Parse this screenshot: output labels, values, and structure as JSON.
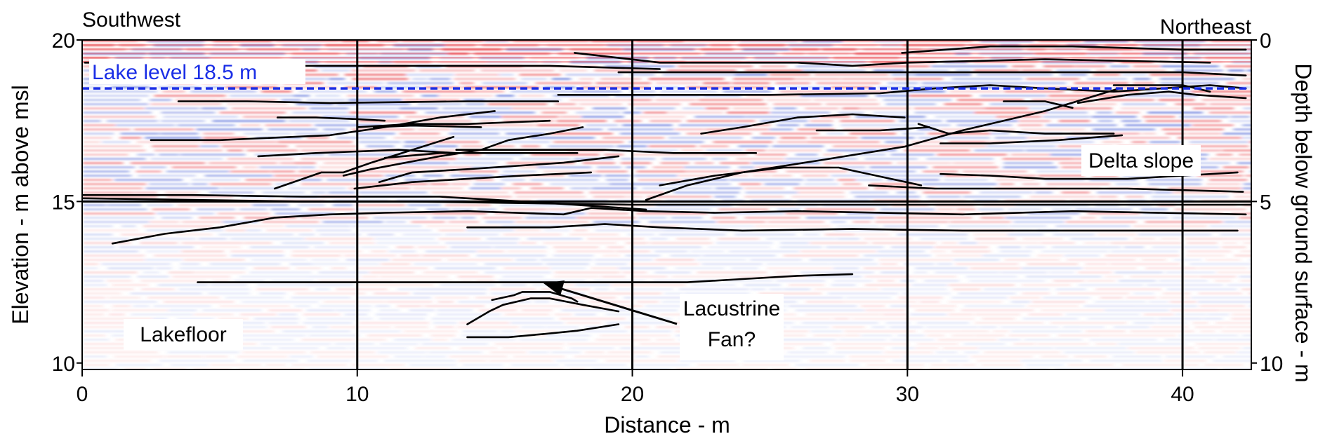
{
  "figure": {
    "corner_left": "Southwest",
    "corner_right": "Northeast",
    "xlabel": "Distance - m",
    "ylabel_left": "Elevation - m above msl",
    "ylabel_right": "Depth below ground surface - m",
    "x_ticks": [
      "0",
      "10",
      "20",
      "30",
      "40"
    ],
    "y_ticks_left": [
      "20",
      "15",
      "10"
    ],
    "y_ticks_right": [
      "0",
      "5",
      "10"
    ],
    "lake_level_label": "Lake level 18.5 m",
    "annotations": {
      "delta_slope": "Delta slope",
      "lacustrine_fan_line1": "Lacustrine",
      "lacustrine_fan_line2": "Fan?",
      "lakefloor": "Lakefloor"
    }
  },
  "chart_data": {
    "type": "line",
    "xlim": [
      0,
      42.5
    ],
    "ylim": [
      9.8,
      20
    ],
    "x_ticks": [
      0,
      10,
      20,
      30,
      40
    ],
    "y_ticks": [
      20,
      15,
      10
    ],
    "depth_ticks": [
      0,
      5,
      10
    ],
    "vertical_gridlines_x": [
      10,
      20,
      30,
      40
    ],
    "horizontal_gridline_y": 15,
    "lake_level_elevation": 18.5,
    "colors": {
      "lake_level": "#1a2ee6",
      "reflector_lines": "#000000",
      "radar_red": "#e8464e",
      "radar_blue": "#4c63d6",
      "background": "#ffffff",
      "frame": "#000000"
    },
    "reflectors": [
      [
        [
          0.1,
          19.3
        ],
        [
          3,
          19.3
        ],
        [
          5,
          19.2
        ],
        [
          9,
          19.2
        ],
        [
          14,
          19.2
        ],
        [
          17,
          19.2
        ],
        [
          21,
          19.1
        ]
      ],
      [
        [
          17.9,
          19.6
        ],
        [
          21,
          19.3
        ],
        [
          26,
          19.3
        ],
        [
          28,
          19.2
        ],
        [
          30,
          19.3
        ],
        [
          35,
          19.4
        ],
        [
          41,
          19.3
        ]
      ],
      [
        [
          29.8,
          19.6
        ],
        [
          33,
          19.8
        ],
        [
          36,
          19.8
        ],
        [
          40,
          19.7
        ],
        [
          42.3,
          19.7
        ]
      ],
      [
        [
          3.5,
          18.1
        ],
        [
          6,
          18.1
        ],
        [
          9,
          18.05
        ],
        [
          14,
          18.1
        ],
        [
          17.3,
          18.1
        ]
      ],
      [
        [
          17.3,
          18.3
        ],
        [
          20,
          18.3
        ],
        [
          25,
          18.3
        ],
        [
          29,
          18.35
        ],
        [
          31,
          18.5
        ],
        [
          33,
          18.6
        ],
        [
          35,
          18.5
        ],
        [
          37.5,
          18.4
        ],
        [
          41,
          18.6
        ],
        [
          42.3,
          18.5
        ]
      ],
      [
        [
          19.5,
          19.0
        ],
        [
          23,
          19.0
        ],
        [
          27,
          19.0
        ],
        [
          32,
          19.0
        ],
        [
          36,
          19.0
        ],
        [
          40,
          19.0
        ],
        [
          42.3,
          18.9
        ]
      ],
      [
        [
          7.1,
          17.6
        ],
        [
          8.5,
          17.6
        ],
        [
          10,
          17.55
        ],
        [
          11,
          17.5
        ]
      ],
      [
        [
          10,
          17.3
        ],
        [
          12,
          17.4
        ],
        [
          14,
          17.4
        ],
        [
          17,
          17.5
        ]
      ],
      [
        [
          10.6,
          17.3
        ],
        [
          12,
          17.35
        ],
        [
          14.5,
          17.3
        ]
      ],
      [
        [
          2.5,
          16.9
        ],
        [
          5,
          16.9
        ],
        [
          9,
          17.05
        ],
        [
          11,
          17.3
        ],
        [
          13,
          17.6
        ],
        [
          15,
          17.8
        ]
      ],
      [
        [
          6.4,
          16.4
        ],
        [
          8.5,
          16.5
        ],
        [
          11.5,
          16.6
        ],
        [
          13.6,
          16.5
        ]
      ],
      [
        [
          11,
          16.35
        ],
        [
          13,
          16.5
        ],
        [
          16,
          16.5
        ],
        [
          18,
          16.5
        ]
      ],
      [
        [
          7,
          15.4
        ],
        [
          8.7,
          15.9
        ],
        [
          9.5,
          15.9
        ],
        [
          10.5,
          16.2
        ],
        [
          12,
          16.6
        ],
        [
          13.5,
          17.0
        ]
      ],
      [
        [
          9.5,
          15.8
        ],
        [
          10.5,
          16.0
        ],
        [
          13,
          16.4
        ],
        [
          14.5,
          16.6
        ],
        [
          15.5,
          16.9
        ],
        [
          17,
          17.1
        ],
        [
          18.2,
          17.3
        ]
      ],
      [
        [
          10.8,
          15.6
        ],
        [
          12,
          15.9
        ],
        [
          14,
          16.0
        ],
        [
          17.5,
          16.2
        ],
        [
          19.5,
          16.4
        ]
      ],
      [
        [
          9.9,
          15.4
        ],
        [
          12,
          15.6
        ],
        [
          14,
          15.7
        ],
        [
          16,
          15.8
        ],
        [
          18.5,
          15.9
        ]
      ],
      [
        [
          13.6,
          16.6
        ],
        [
          16,
          16.6
        ],
        [
          19,
          16.6
        ],
        [
          21.5,
          16.5
        ],
        [
          24.5,
          16.5
        ]
      ],
      [
        [
          21,
          15.5
        ],
        [
          23,
          15.8
        ],
        [
          25.5,
          16.05
        ],
        [
          27.5,
          16.05
        ],
        [
          30.5,
          15.5
        ]
      ],
      [
        [
          22.5,
          17.1
        ],
        [
          24,
          17.3
        ],
        [
          26,
          17.6
        ],
        [
          28,
          17.7
        ],
        [
          29.9,
          17.6
        ]
      ],
      [
        [
          26.7,
          17.2
        ],
        [
          29,
          17.2
        ],
        [
          30.8,
          17.3
        ]
      ],
      [
        [
          20.5,
          15.05
        ],
        [
          22,
          15.5
        ],
        [
          24,
          15.9
        ],
        [
          27,
          16.3
        ],
        [
          29.9,
          16.7
        ],
        [
          32,
          17.2
        ],
        [
          35,
          17.8
        ],
        [
          37.7,
          18.5
        ]
      ],
      [
        [
          30.4,
          17.4
        ],
        [
          31.5,
          17.1
        ],
        [
          33,
          17.2
        ],
        [
          35,
          17.1
        ],
        [
          37.5,
          17.1
        ]
      ],
      [
        [
          31.2,
          16.8
        ],
        [
          33,
          16.8
        ],
        [
          35.5,
          16.9
        ],
        [
          37.8,
          17.05
        ]
      ],
      [
        [
          31.2,
          15.85
        ],
        [
          33,
          15.8
        ],
        [
          35,
          15.7
        ],
        [
          38,
          15.7
        ],
        [
          40,
          15.8
        ],
        [
          42,
          15.9
        ]
      ],
      [
        [
          33.5,
          18.1
        ],
        [
          35,
          18.1
        ],
        [
          36,
          17.9
        ]
      ],
      [
        [
          36.2,
          18.05
        ],
        [
          38,
          18.3
        ],
        [
          39.5,
          18.4
        ],
        [
          40.5,
          18.3
        ],
        [
          42.3,
          18.2
        ]
      ],
      [
        [
          37.5,
          18.6
        ],
        [
          40,
          18.6
        ],
        [
          41,
          18.4
        ]
      ],
      [
        [
          28.6,
          15.5
        ],
        [
          31,
          15.4
        ],
        [
          35,
          15.4
        ],
        [
          38,
          15.4
        ],
        [
          42.2,
          15.3
        ]
      ],
      [
        [
          0,
          15.2
        ],
        [
          4,
          15.2
        ],
        [
          8,
          15.15
        ],
        [
          13,
          15.15
        ],
        [
          15,
          15.05
        ],
        [
          17,
          14.95
        ],
        [
          20.5,
          14.75
        ]
      ],
      [
        [
          0,
          15.1
        ],
        [
          8,
          15.0
        ],
        [
          12,
          15.0
        ],
        [
          16,
          14.95
        ],
        [
          20,
          14.9
        ],
        [
          25,
          14.9
        ],
        [
          32,
          14.9
        ],
        [
          42.5,
          14.9
        ]
      ],
      [
        [
          1.1,
          13.7
        ],
        [
          3,
          14.0
        ],
        [
          5,
          14.2
        ],
        [
          7,
          14.5
        ],
        [
          9,
          14.6
        ],
        [
          11,
          14.65
        ],
        [
          14,
          14.7
        ],
        [
          17.5,
          14.6
        ],
        [
          18.5,
          14.8
        ],
        [
          20.5,
          14.7
        ],
        [
          23,
          14.65
        ],
        [
          26,
          14.7
        ],
        [
          32,
          14.6
        ],
        [
          36,
          14.7
        ],
        [
          42.3,
          14.6
        ]
      ],
      [
        [
          14,
          14.2
        ],
        [
          17,
          14.2
        ],
        [
          19,
          14.3
        ],
        [
          21,
          14.2
        ],
        [
          24,
          14.1
        ],
        [
          28,
          14.15
        ],
        [
          32,
          14.1
        ],
        [
          42,
          14.1
        ]
      ],
      [
        [
          4.2,
          12.5
        ],
        [
          8,
          12.5
        ],
        [
          12,
          12.5
        ],
        [
          16,
          12.5
        ],
        [
          20,
          12.5
        ],
        [
          22,
          12.5
        ],
        [
          24,
          12.6
        ],
        [
          26,
          12.7
        ],
        [
          28,
          12.75
        ]
      ],
      [
        [
          14,
          11.2
        ],
        [
          14.8,
          11.6
        ],
        [
          15.3,
          11.8
        ],
        [
          16.3,
          12.0
        ],
        [
          17,
          12.0
        ],
        [
          18.2,
          11.8
        ],
        [
          19.5,
          11.6
        ]
      ],
      [
        [
          14.9,
          11.95
        ],
        [
          15.7,
          12.1
        ],
        [
          16,
          12.2
        ],
        [
          17,
          12.2
        ],
        [
          17.8,
          12.0
        ],
        [
          18,
          11.9
        ]
      ],
      [
        [
          14,
          10.8
        ],
        [
          15.5,
          10.8
        ],
        [
          16.8,
          10.9
        ],
        [
          18,
          11.0
        ],
        [
          19.5,
          11.2
        ]
      ]
    ]
  }
}
